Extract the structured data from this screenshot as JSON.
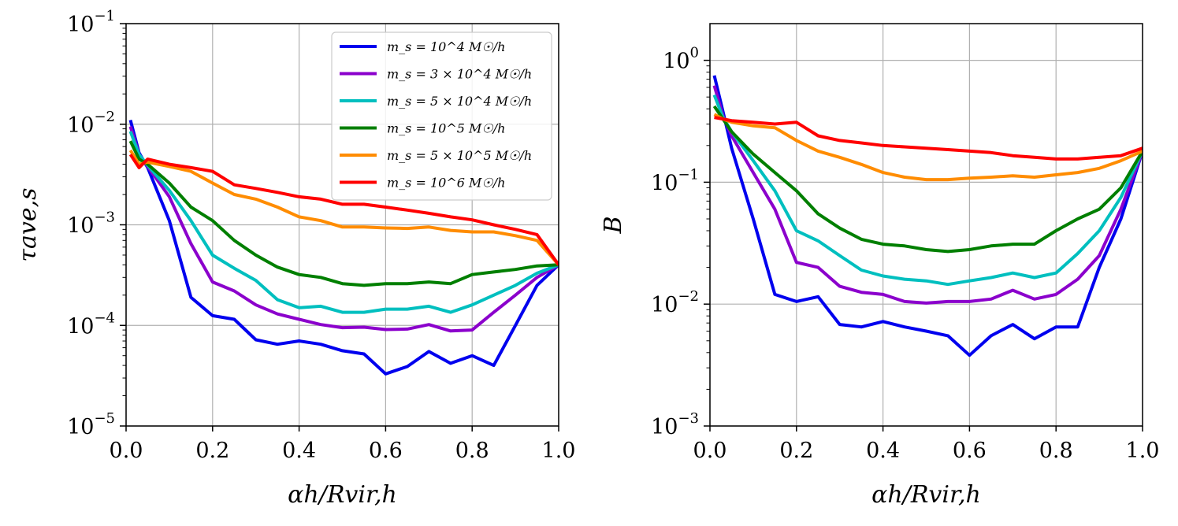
{
  "figure": {
    "legend": [
      {
        "name": "m_s = 10^4 M☉/h",
        "color": "#0000ee"
      },
      {
        "name": "m_s = 3 × 10^4 M☉/h",
        "color": "#8b00cc"
      },
      {
        "name": "m_s = 5 × 10^4 M☉/h",
        "color": "#00bfbf"
      },
      {
        "name": "m_s = 10^5 M☉/h",
        "color": "#007f00"
      },
      {
        "name": "m_s = 5 × 10^5 M☉/h",
        "color": "#ff8c00"
      },
      {
        "name": "m_s = 10^6 M☉/h",
        "color": "#ff0000"
      }
    ]
  },
  "chart_data": [
    {
      "type": "line",
      "title": "",
      "xlabel": "αh/Rvir,h",
      "ylabel": "τave,s",
      "xlim": [
        0.0,
        1.0
      ],
      "ylim": [
        1e-05,
        0.1
      ],
      "yscale": "log",
      "grid": true,
      "legend_position": "upper-right",
      "x_ticks": [
        "0.0",
        "0.2",
        "0.4",
        "0.6",
        "0.8",
        "1.0"
      ],
      "y_ticks": [
        {
          "base": "10",
          "exp": "−5"
        },
        {
          "base": "10",
          "exp": "−4"
        },
        {
          "base": "10",
          "exp": "−3"
        },
        {
          "base": "10",
          "exp": "−2"
        },
        {
          "base": "10",
          "exp": "−1"
        }
      ],
      "x": [
        0.01,
        0.03,
        0.05,
        0.1,
        0.15,
        0.2,
        0.25,
        0.3,
        0.35,
        0.4,
        0.45,
        0.5,
        0.55,
        0.6,
        0.65,
        0.7,
        0.75,
        0.8,
        0.85,
        0.9,
        0.95,
        1.0
      ],
      "series": [
        {
          "name": "m_s = 10^4 M☉/h",
          "color": "#0000ee",
          "values": [
            0.011,
            0.0052,
            0.0037,
            0.0011,
            0.00019,
            0.000125,
            0.000115,
            7.2e-05,
            6.5e-05,
            7e-05,
            6.5e-05,
            5.6e-05,
            5.2e-05,
            3.3e-05,
            3.9e-05,
            5.5e-05,
            4.2e-05,
            5e-05,
            4e-05,
            0.0001,
            0.00025,
            0.0004
          ]
        },
        {
          "name": "m_s = 3 × 10^4 M☉/h",
          "color": "#8b00cc",
          "values": [
            0.0095,
            0.005,
            0.0038,
            0.0019,
            0.00065,
            0.00027,
            0.00022,
            0.00016,
            0.00013,
            0.000115,
            0.000102,
            9.5e-05,
            9.6e-05,
            9.1e-05,
            9.2e-05,
            0.000102,
            8.8e-05,
            9e-05,
            0.000135,
            0.0002,
            0.0003,
            0.0004
          ]
        },
        {
          "name": "m_s = 5 × 10^4 M☉/h",
          "color": "#00bfbf",
          "values": [
            0.0085,
            0.005,
            0.0039,
            0.0022,
            0.0011,
            0.0005,
            0.00037,
            0.00028,
            0.00018,
            0.00015,
            0.000155,
            0.000135,
            0.000135,
            0.000145,
            0.000145,
            0.000155,
            0.000135,
            0.00016,
            0.0002,
            0.00025,
            0.00033,
            0.0004
          ]
        },
        {
          "name": "m_s = 10^5 M☉/h",
          "color": "#007f00",
          "values": [
            0.0068,
            0.0045,
            0.004,
            0.0026,
            0.0015,
            0.0011,
            0.0007,
            0.0005,
            0.00038,
            0.00032,
            0.0003,
            0.00026,
            0.00025,
            0.00026,
            0.00026,
            0.00027,
            0.00026,
            0.00032,
            0.00034,
            0.00036,
            0.00039,
            0.0004
          ]
        },
        {
          "name": "m_s = 5 × 10^5 M☉/h",
          "color": "#ff8c00",
          "values": [
            0.0055,
            0.004,
            0.0042,
            0.0038,
            0.0034,
            0.0026,
            0.002,
            0.0018,
            0.0015,
            0.0012,
            0.0011,
            0.00095,
            0.00095,
            0.00093,
            0.00092,
            0.00095,
            0.00088,
            0.00085,
            0.00085,
            0.00078,
            0.0007,
            0.0004
          ]
        },
        {
          "name": "m_s = 10^6 M☉/h",
          "color": "#ff0000",
          "values": [
            0.005,
            0.0037,
            0.0045,
            0.004,
            0.0037,
            0.0034,
            0.0025,
            0.0023,
            0.0021,
            0.0019,
            0.0018,
            0.0016,
            0.0016,
            0.0015,
            0.0014,
            0.0013,
            0.0012,
            0.00112,
            0.001,
            0.0009,
            0.0008,
            0.0004
          ]
        }
      ]
    },
    {
      "type": "line",
      "title": "",
      "xlabel": "αh/Rvir,h",
      "ylabel": "B",
      "xlim": [
        0.0,
        1.0
      ],
      "ylim": [
        0.001,
        2.0
      ],
      "yscale": "log",
      "grid": true,
      "x_ticks": [
        "0.0",
        "0.2",
        "0.4",
        "0.6",
        "0.8",
        "1.0"
      ],
      "y_ticks": [
        {
          "base": "10",
          "exp": "−3"
        },
        {
          "base": "10",
          "exp": "−2"
        },
        {
          "base": "10",
          "exp": "−1"
        },
        {
          "base": "10",
          "exp": "0"
        }
      ],
      "x": [
        0.01,
        0.03,
        0.05,
        0.1,
        0.15,
        0.2,
        0.25,
        0.3,
        0.35,
        0.4,
        0.45,
        0.5,
        0.55,
        0.6,
        0.65,
        0.7,
        0.75,
        0.8,
        0.85,
        0.9,
        0.95,
        1.0
      ],
      "series": [
        {
          "name": "m_s = 10^4 M☉/h",
          "color": "#0000ee",
          "values": [
            0.75,
            0.38,
            0.19,
            0.05,
            0.012,
            0.0105,
            0.0115,
            0.0068,
            0.0065,
            0.0072,
            0.0065,
            0.006,
            0.0055,
            0.0038,
            0.0055,
            0.0068,
            0.0052,
            0.0065,
            0.0065,
            0.02,
            0.05,
            0.18
          ]
        },
        {
          "name": "m_s = 3 × 10^4 M☉/h",
          "color": "#8b00cc",
          "values": [
            0.62,
            0.35,
            0.24,
            0.12,
            0.06,
            0.022,
            0.02,
            0.014,
            0.0125,
            0.012,
            0.0105,
            0.0102,
            0.0105,
            0.0105,
            0.011,
            0.013,
            0.011,
            0.012,
            0.016,
            0.025,
            0.06,
            0.18
          ]
        },
        {
          "name": "m_s = 5 × 10^4 M☉/h",
          "color": "#00bfbf",
          "values": [
            0.52,
            0.34,
            0.26,
            0.15,
            0.085,
            0.04,
            0.033,
            0.025,
            0.019,
            0.017,
            0.016,
            0.0155,
            0.0145,
            0.0155,
            0.0165,
            0.018,
            0.0165,
            0.018,
            0.026,
            0.04,
            0.075,
            0.18
          ]
        },
        {
          "name": "m_s = 10^5 M☉/h",
          "color": "#007f00",
          "values": [
            0.42,
            0.33,
            0.26,
            0.17,
            0.12,
            0.085,
            0.055,
            0.042,
            0.034,
            0.031,
            0.03,
            0.028,
            0.027,
            0.028,
            0.03,
            0.031,
            0.031,
            0.04,
            0.05,
            0.06,
            0.09,
            0.18
          ]
        },
        {
          "name": "m_s = 5 × 10^5 M☉/h",
          "color": "#ff8c00",
          "values": [
            0.36,
            0.33,
            0.31,
            0.29,
            0.28,
            0.22,
            0.18,
            0.16,
            0.14,
            0.12,
            0.11,
            0.105,
            0.105,
            0.108,
            0.11,
            0.113,
            0.11,
            0.115,
            0.12,
            0.13,
            0.15,
            0.18
          ]
        },
        {
          "name": "m_s = 10^6 M☉/h",
          "color": "#ff0000",
          "values": [
            0.34,
            0.33,
            0.32,
            0.31,
            0.3,
            0.31,
            0.24,
            0.22,
            0.21,
            0.2,
            0.195,
            0.19,
            0.185,
            0.18,
            0.175,
            0.165,
            0.16,
            0.155,
            0.155,
            0.16,
            0.165,
            0.19
          ]
        }
      ]
    }
  ]
}
